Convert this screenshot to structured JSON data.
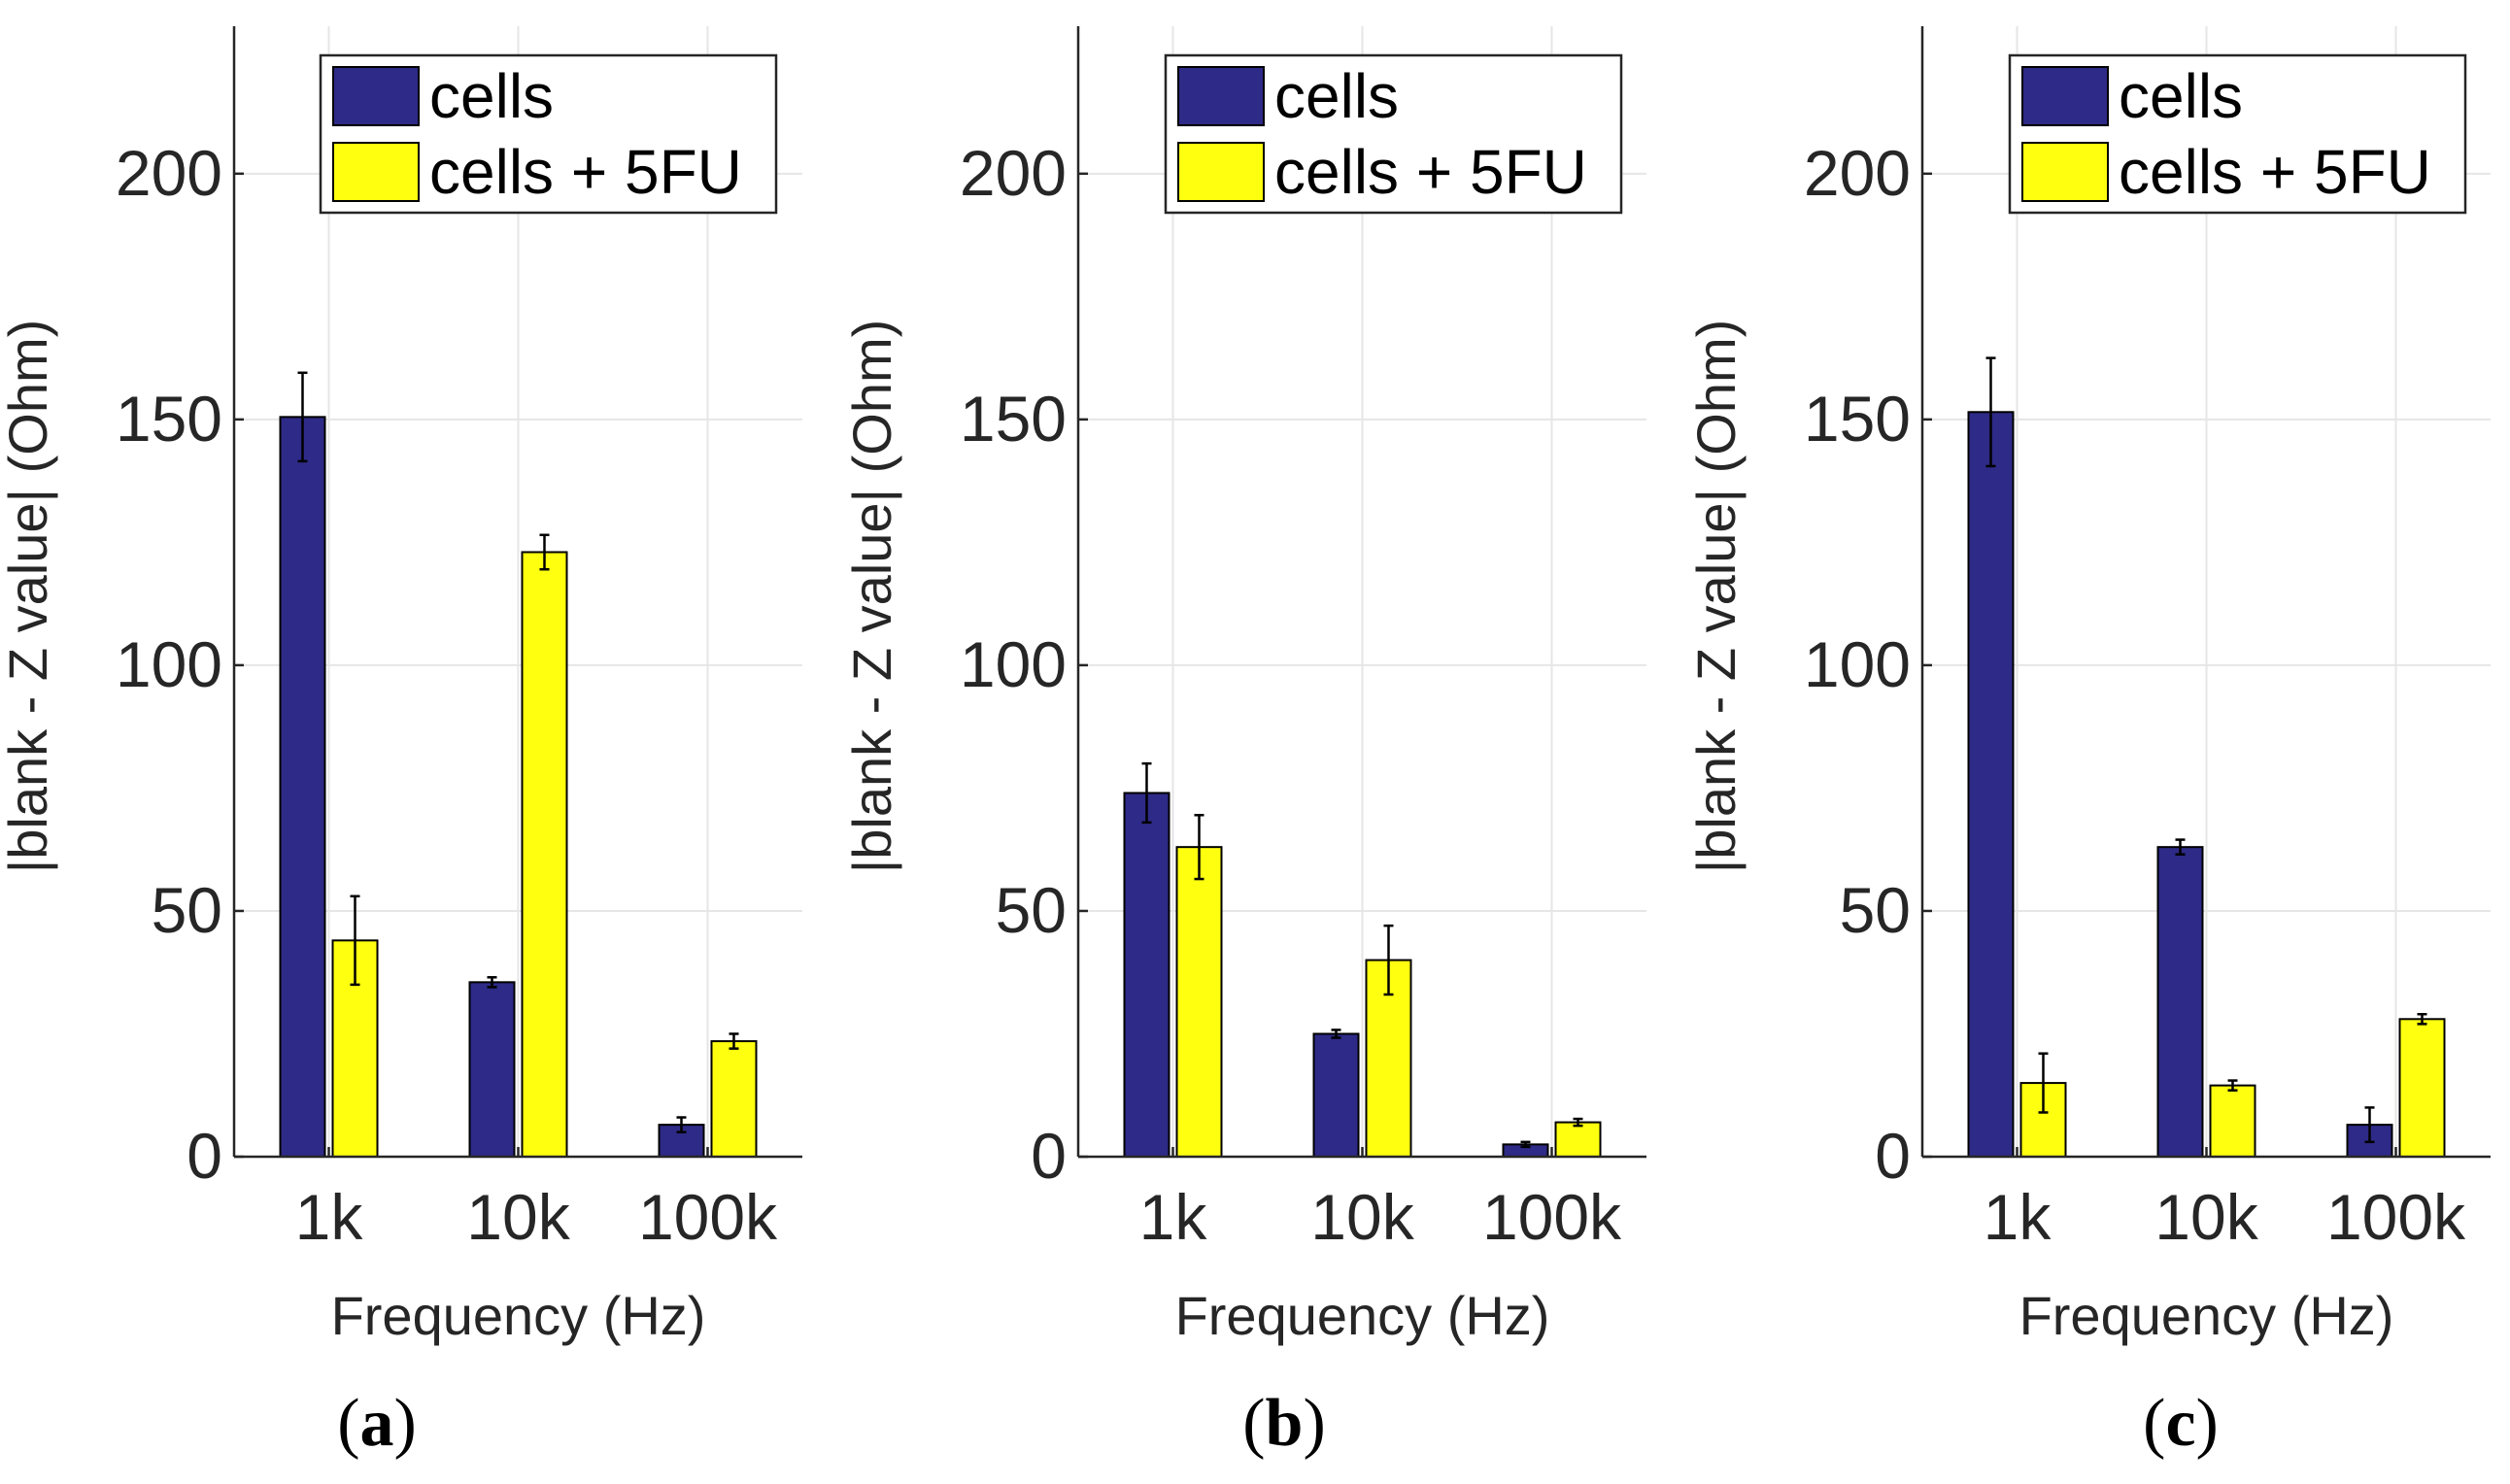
{
  "chart_data": [
    {
      "type": "bar",
      "panel_label": "a",
      "categories": [
        "1k",
        "10k",
        "100k"
      ],
      "xlabel": "Frequency (Hz)",
      "ylabel": "|blank - Z value| (Ohm)",
      "ylim": [
        0,
        230
      ],
      "yticks": [
        0,
        50,
        100,
        150,
        200
      ],
      "grid": true,
      "legend_position": "top-right",
      "series": [
        {
          "name": "cells",
          "color": "#2e2a87",
          "values": [
            150.5,
            35.5,
            6.5
          ],
          "errors": [
            9,
            1,
            1.5
          ]
        },
        {
          "name": "cells + 5FU",
          "color": "#ffff10",
          "values": [
            44,
            123,
            23.5
          ],
          "errors": [
            9,
            3.5,
            1.5
          ]
        }
      ]
    },
    {
      "type": "bar",
      "panel_label": "b",
      "categories": [
        "1k",
        "10k",
        "100k"
      ],
      "xlabel": "Frequency (Hz)",
      "ylabel": "|blank - Z value| (Ohm)",
      "ylim": [
        0,
        230
      ],
      "yticks": [
        0,
        50,
        100,
        150,
        200
      ],
      "grid": true,
      "legend_position": "top-right",
      "series": [
        {
          "name": "cells",
          "color": "#2e2a87",
          "values": [
            74,
            25,
            2.5
          ],
          "errors": [
            6,
            0.8,
            0.5
          ]
        },
        {
          "name": "cells + 5FU",
          "color": "#ffff10",
          "values": [
            63,
            40,
            7
          ],
          "errors": [
            6.5,
            7,
            0.7
          ]
        }
      ]
    },
    {
      "type": "bar",
      "panel_label": "c",
      "categories": [
        "1k",
        "10k",
        "100k"
      ],
      "xlabel": "Frequency (Hz)",
      "ylabel": "|blank - Z value| (Ohm)",
      "ylim": [
        0,
        230
      ],
      "yticks": [
        0,
        50,
        100,
        150,
        200
      ],
      "grid": true,
      "legend_position": "top-right",
      "series": [
        {
          "name": "cells",
          "color": "#2e2a87",
          "values": [
            151.5,
            63,
            6.5
          ],
          "errors": [
            11,
            1.5,
            3.5
          ]
        },
        {
          "name": "cells + 5FU",
          "color": "#ffff10",
          "values": [
            15,
            14.5,
            28
          ],
          "errors": [
            6,
            1,
            1
          ]
        }
      ]
    }
  ]
}
